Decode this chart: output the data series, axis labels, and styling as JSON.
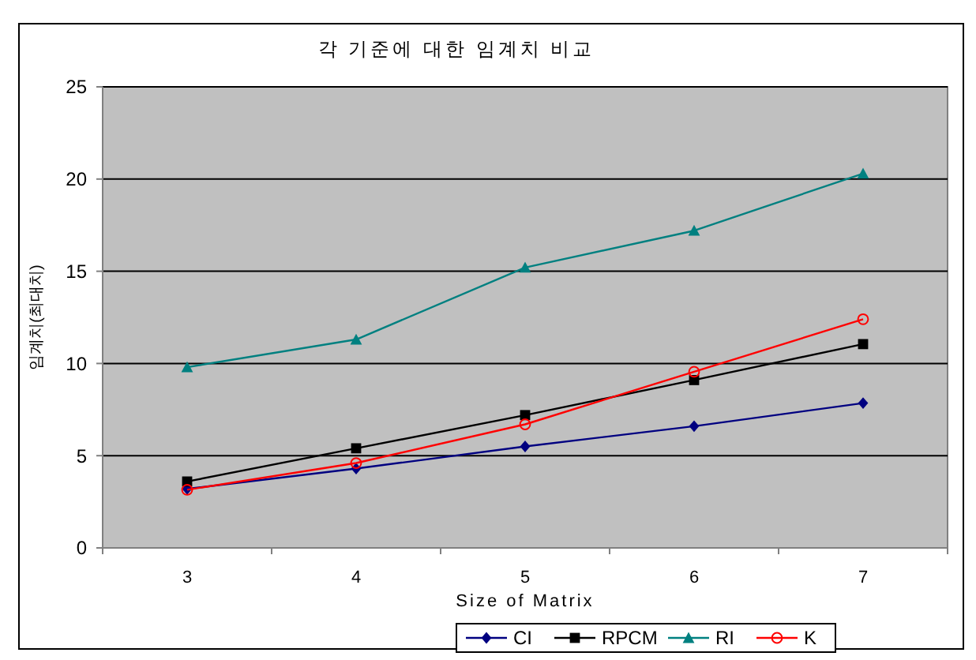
{
  "chart_data": {
    "type": "line",
    "title": "각 기준에 대한 임계치 비교",
    "xlabel": "Size of Matrix",
    "ylabel": "임계치(최대치)",
    "categories": [
      "3",
      "4",
      "5",
      "6",
      "7"
    ],
    "ylim": [
      0,
      25
    ],
    "yticks": [
      0,
      5,
      10,
      15,
      20,
      25
    ],
    "grid": "y",
    "legend": "bottom",
    "series": [
      {
        "name": "CI",
        "color": "#000080",
        "marker": "diamond",
        "values": [
          3.2,
          4.3,
          5.5,
          6.6,
          7.85
        ]
      },
      {
        "name": "RPCM",
        "color": "#000000",
        "marker": "square",
        "values": [
          3.6,
          5.4,
          7.2,
          9.1,
          11.05
        ]
      },
      {
        "name": "RI",
        "color": "#008080",
        "marker": "triangle",
        "values": [
          9.8,
          11.3,
          15.2,
          17.2,
          20.3
        ]
      },
      {
        "name": "K",
        "color": "#ff0000",
        "marker": "circle",
        "values": [
          3.15,
          4.6,
          6.7,
          9.55,
          12.4
        ]
      }
    ]
  }
}
